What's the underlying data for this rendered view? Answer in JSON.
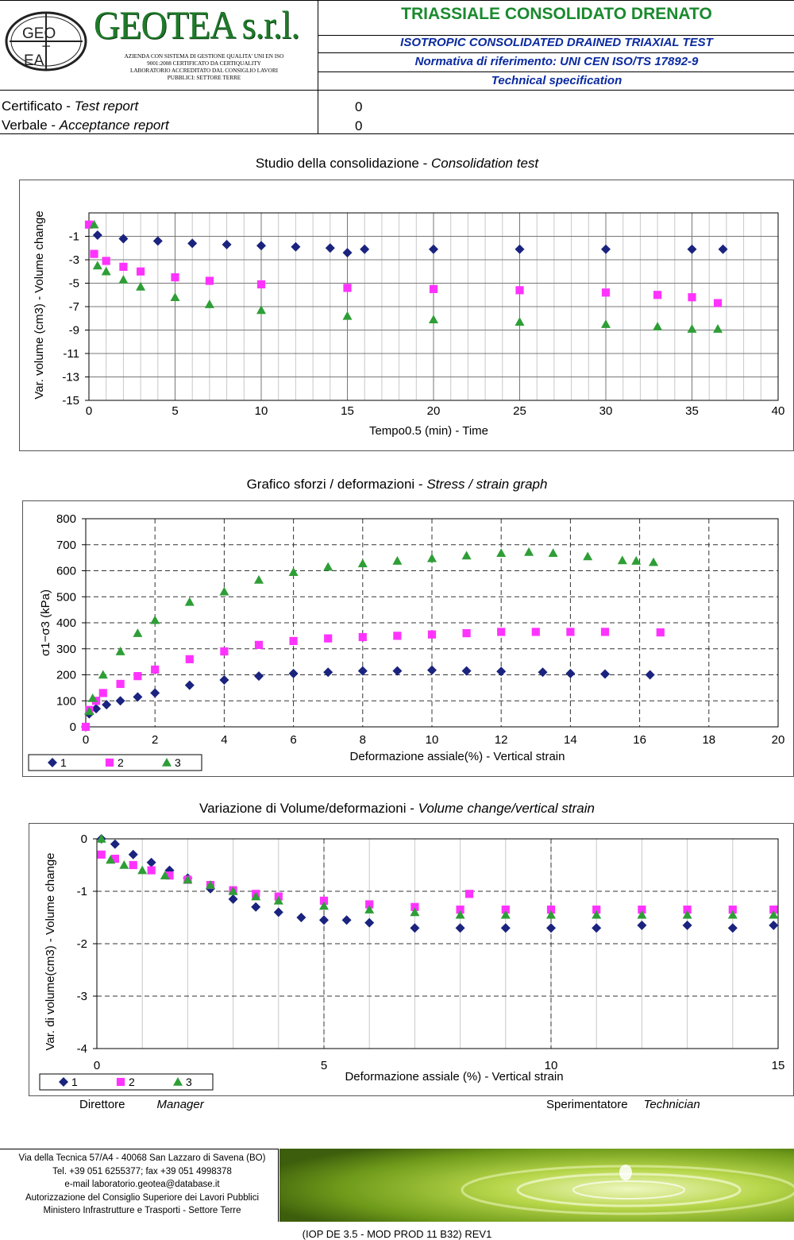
{
  "header": {
    "company": "GEOTEA s.r.l.",
    "logo_text": "GEO T EA",
    "company_sub": [
      "AZIENDA CON SISTEMA DI GESTIONE QUALITA' UNI EN ISO",
      "9001:2008 CERTIFICATO DA CERTIQUALITY",
      "LABORATORIO ACCREDITATO DAL CONSIGLIO LAVORI",
      "PUBBLICI: SETTORE TERRE"
    ],
    "title": "TRIASSIALE CONSOLIDATO DRENATO",
    "subtitle": "ISOTROPIC CONSOLIDATED DRAINED TRIAXIAL TEST",
    "norm": "Normativa di riferimento: UNI CEN ISO/TS 17892-9",
    "spec": "Technical specification"
  },
  "reports": {
    "certificate_label": "Certificato - ",
    "certificate_label_en": "Test report",
    "certificate_value": "0",
    "acceptance_label": "Verbale - ",
    "acceptance_label_en": "Acceptance report",
    "acceptance_value": "0"
  },
  "colors": {
    "series1": "#1a237e",
    "series2": "#ff33ff",
    "series3": "#2e9e36",
    "title_green": "#1b8a2e",
    "title_blue": "#0a2aa0"
  },
  "chart_data": [
    {
      "type": "scatter",
      "title": "Studio della consolidazione - ",
      "title_en": "Consolidation test",
      "xlabel": "Tempo0.5 (min)  - Time",
      "ylabel": "Var. volume (cm3) - Volume change",
      "xlim": [
        0,
        40
      ],
      "ylim": [
        -15,
        1
      ],
      "xticks": [
        0,
        5,
        10,
        15,
        20,
        25,
        30,
        35,
        40
      ],
      "yticks": [
        -1,
        -3,
        -5,
        -7,
        -9,
        -11,
        -13,
        -15
      ],
      "grid": true,
      "series": [
        {
          "name": "1",
          "marker": "diamond",
          "x": [
            0.5,
            2,
            4,
            6,
            8,
            10,
            12,
            14,
            15,
            16,
            20,
            25,
            30,
            35,
            36.8
          ],
          "y": [
            -0.9,
            -1.2,
            -1.4,
            -1.6,
            -1.7,
            -1.8,
            -1.9,
            -2.0,
            -2.4,
            -2.1,
            -2.1,
            -2.1,
            -2.1,
            -2.1,
            -2.1
          ]
        },
        {
          "name": "2",
          "marker": "square",
          "x": [
            0,
            0.3,
            1,
            2,
            3,
            5,
            7,
            10,
            15,
            20,
            25,
            30,
            33,
            35,
            36.5
          ],
          "y": [
            0,
            -2.5,
            -3.1,
            -3.6,
            -4.0,
            -4.5,
            -4.8,
            -5.1,
            -5.4,
            -5.5,
            -5.6,
            -5.8,
            -6.0,
            -6.2,
            -6.7
          ]
        },
        {
          "name": "3",
          "marker": "triangle",
          "x": [
            0.3,
            0.5,
            1,
            2,
            3,
            5,
            7,
            10,
            15,
            20,
            25,
            30,
            33,
            35,
            36.5
          ],
          "y": [
            0,
            -3.5,
            -4.0,
            -4.7,
            -5.3,
            -6.2,
            -6.8,
            -7.3,
            -7.8,
            -8.1,
            -8.3,
            -8.5,
            -8.7,
            -8.9,
            -8.9
          ]
        }
      ]
    },
    {
      "type": "scatter",
      "title": "Grafico sforzi / deformazioni - ",
      "title_en": "Stress / strain graph",
      "xlabel": "Deformazione assiale(%) - Vertical strain",
      "ylabel": "σ1−σ3 (kPa)",
      "xlim": [
        0,
        20
      ],
      "ylim": [
        0,
        800
      ],
      "xticks": [
        0,
        2,
        4,
        6,
        8,
        10,
        12,
        14,
        16,
        18,
        20
      ],
      "yticks": [
        0,
        100,
        200,
        300,
        400,
        500,
        600,
        700,
        800
      ],
      "grid": true,
      "legend": "bottom-left",
      "series": [
        {
          "name": "1",
          "marker": "diamond",
          "x": [
            0,
            0.1,
            0.3,
            0.6,
            1,
            1.5,
            2,
            3,
            4,
            5,
            6,
            7,
            8,
            9,
            10,
            11,
            12,
            13.2,
            14,
            15,
            16.3
          ],
          "y": [
            0,
            50,
            70,
            85,
            100,
            115,
            130,
            160,
            180,
            195,
            205,
            210,
            215,
            215,
            218,
            215,
            213,
            210,
            205,
            203,
            200
          ]
        },
        {
          "name": "2",
          "marker": "square",
          "x": [
            0,
            0.1,
            0.3,
            0.5,
            1,
            1.5,
            2,
            3,
            4,
            5,
            6,
            7,
            8,
            9,
            10,
            11,
            12,
            13,
            14,
            15,
            16.6
          ],
          "y": [
            0,
            65,
            100,
            130,
            165,
            195,
            220,
            260,
            290,
            315,
            330,
            340,
            345,
            350,
            355,
            360,
            365,
            365,
            365,
            365,
            363
          ]
        },
        {
          "name": "3",
          "marker": "triangle",
          "x": [
            0.1,
            0.2,
            0.5,
            1,
            1.5,
            2,
            3,
            4,
            5,
            6,
            7,
            8,
            9,
            10,
            11,
            12,
            12.8,
            13.5,
            14.5,
            15.5,
            15.9,
            16.4
          ],
          "y": [
            60,
            110,
            200,
            290,
            360,
            410,
            480,
            520,
            565,
            595,
            615,
            628,
            638,
            648,
            658,
            668,
            672,
            668,
            655,
            640,
            638,
            633
          ]
        }
      ]
    },
    {
      "type": "scatter",
      "title": "Variazione di Volume/deformazioni - ",
      "title_en": "Volume change/vertical strain",
      "xlabel": "Deformazione assiale (%) - Vertical strain",
      "ylabel": "Var. di volume(cm3) - Volume change",
      "xlim": [
        0,
        15
      ],
      "ylim": [
        -4,
        0
      ],
      "xticks": [
        0,
        5,
        10,
        15
      ],
      "yticks": [
        0,
        -1,
        -2,
        -3,
        -4
      ],
      "grid": true,
      "legend": "bottom-left",
      "series": [
        {
          "name": "1",
          "marker": "diamond",
          "x": [
            0.1,
            0.4,
            0.8,
            1.2,
            1.6,
            2,
            2.5,
            3,
            3.5,
            4,
            4.5,
            5,
            5.5,
            6,
            7,
            8,
            9,
            10,
            11,
            12,
            13,
            14,
            14.9
          ],
          "y": [
            0,
            -0.1,
            -0.3,
            -0.45,
            -0.6,
            -0.75,
            -0.95,
            -1.15,
            -1.3,
            -1.4,
            -1.5,
            -1.55,
            -1.55,
            -1.6,
            -1.7,
            -1.7,
            -1.7,
            -1.7,
            -1.7,
            -1.65,
            -1.65,
            -1.7,
            -1.65
          ]
        },
        {
          "name": "2",
          "marker": "square",
          "x": [
            0.1,
            0.4,
            0.8,
            1.2,
            1.6,
            2,
            2.5,
            3,
            3.5,
            4,
            5,
            6,
            7,
            8,
            8.2,
            9,
            10,
            11,
            12,
            13,
            14,
            14.9
          ],
          "y": [
            -0.3,
            -0.38,
            -0.5,
            -0.6,
            -0.7,
            -0.78,
            -0.88,
            -0.98,
            -1.05,
            -1.1,
            -1.18,
            -1.25,
            -1.3,
            -1.35,
            -1.05,
            -1.35,
            -1.35,
            -1.35,
            -1.35,
            -1.35,
            -1.35,
            -1.35
          ]
        },
        {
          "name": "3",
          "marker": "triangle",
          "x": [
            0.1,
            0.3,
            0.6,
            1,
            1.5,
            2,
            2.5,
            3,
            3.5,
            4,
            5,
            6,
            7,
            8,
            9,
            10,
            11,
            12,
            13,
            14,
            14.9
          ],
          "y": [
            0,
            -0.4,
            -0.5,
            -0.6,
            -0.7,
            -0.78,
            -0.88,
            -1.0,
            -1.1,
            -1.18,
            -1.28,
            -1.35,
            -1.4,
            -1.45,
            -1.45,
            -1.45,
            -1.45,
            -1.45,
            -1.45,
            -1.45,
            -1.45
          ]
        }
      ]
    }
  ],
  "signatures": {
    "director": "Direttore",
    "director_en": "Manager",
    "technician": "Sperimentatore",
    "technician_en": "Technician"
  },
  "footer": {
    "lines": [
      "Via della Tecnica 57/A4 - 40068 San Lazzaro di Savena (BO)",
      "Tel. +39 051 6255377; fax +39 051 4998378",
      "e-mail laboratorio.geotea@database.it",
      "Autorizzazione del Consiglio Superiore dei Lavori Pubblici",
      "Ministero Infrastrutture e Trasporti - Settore Terre"
    ],
    "reference": "(IOP DE 3.5 - MOD PROD 11 B32) REV1"
  }
}
